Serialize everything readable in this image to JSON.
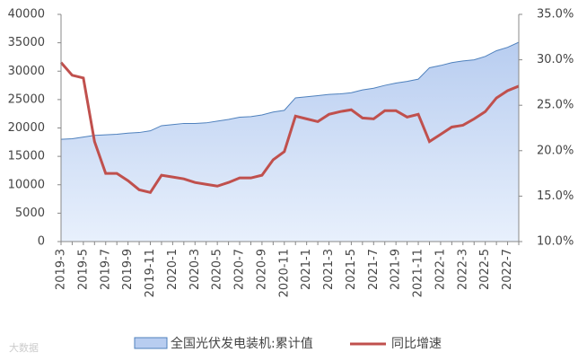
{
  "chart_data": {
    "type": "area-line",
    "categories": [
      "2019-3",
      null,
      "2019-5",
      null,
      "2019-7",
      null,
      "2019-9",
      null,
      "2019-11",
      null,
      "2020-1",
      null,
      "2020-3",
      null,
      "2020-5",
      null,
      "2020-7",
      null,
      "2020-9",
      null,
      "2020-11",
      null,
      "2021-1",
      null,
      "2021-3",
      null,
      "2021-5",
      null,
      "2021-7",
      null,
      "2021-9",
      null,
      "2021-11",
      null,
      "2022-1",
      null,
      "2022-3",
      null,
      "2022-5",
      null,
      "2022-7",
      null
    ],
    "series": [
      {
        "name": "全国光伏发电装机:累计值",
        "type": "area",
        "color": "#4f81bd",
        "fill": "#b8cdf0",
        "values": [
          18000,
          18100,
          18400,
          18700,
          18800,
          18900,
          19100,
          19200,
          19500,
          20400,
          20600,
          20800,
          20800,
          20900,
          21200,
          21500,
          21900,
          22000,
          22300,
          22800,
          23100,
          25300,
          25500,
          25700,
          25900,
          26000,
          26200,
          26700,
          27000,
          27500,
          27900,
          28200,
          28600,
          30600,
          31000,
          31500,
          31800,
          32000,
          32600,
          33600,
          34200,
          35100
        ]
      },
      {
        "name": "同比增速",
        "type": "line",
        "axis": "y2",
        "color": "#c0504d",
        "values": [
          29.7,
          28.3,
          28.0,
          21.0,
          17.5,
          17.5,
          16.7,
          15.7,
          15.4,
          17.3,
          17.1,
          16.9,
          16.5,
          16.3,
          16.1,
          16.5,
          17.0,
          17.0,
          17.3,
          19.0,
          19.9,
          23.8,
          23.5,
          23.2,
          24.0,
          24.3,
          24.5,
          23.6,
          23.5,
          24.4,
          24.4,
          23.7,
          24.0,
          21.0,
          21.8,
          22.6,
          22.8,
          23.5,
          24.3,
          25.8,
          26.6,
          27.1
        ]
      }
    ],
    "ylim": [
      0,
      40000
    ],
    "yticks": [
      0,
      5000,
      10000,
      15000,
      20000,
      25000,
      30000,
      35000,
      40000
    ],
    "y2lim": [
      10,
      35
    ],
    "y2ticks": [
      {
        "value": 10,
        "label": "10.0%"
      },
      {
        "value": 15,
        "label": "15.0%"
      },
      {
        "value": 20,
        "label": "20.0%"
      },
      {
        "value": 25,
        "label": "25.0%"
      },
      {
        "value": 30,
        "label": "30.0%"
      },
      {
        "value": 35,
        "label": "35.0%"
      }
    ],
    "watermark": "大数据"
  }
}
